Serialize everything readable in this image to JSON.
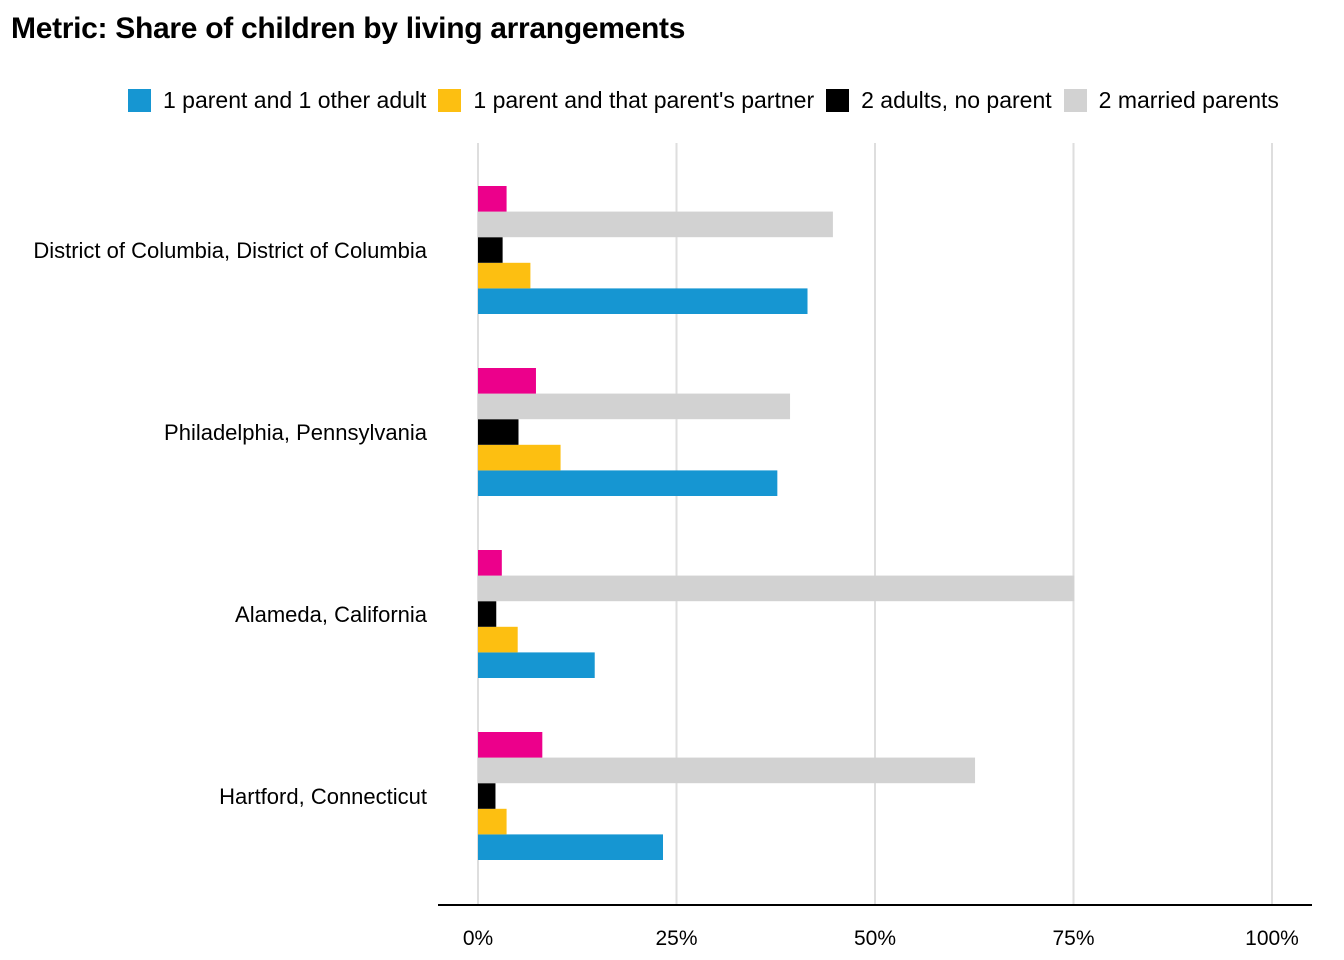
{
  "chart_data": {
    "type": "bar",
    "orientation": "horizontal",
    "title": "Metric: Share of children by living arrangements",
    "categories": [
      "District of Columbia, District of Columbia",
      "Philadelphia, Pennsylvania",
      "Alameda, California",
      "Hartford, Connecticut"
    ],
    "series": [
      {
        "name": "1 parent and 1 other adult",
        "color": "#1696d2",
        "values": [
          41.5,
          37.7,
          14.7,
          23.3
        ]
      },
      {
        "name": "1 parent and that parent's partner",
        "color": "#fdbf11",
        "values": [
          6.6,
          10.4,
          5.0,
          3.6
        ]
      },
      {
        "name": "2 adults, no parent",
        "color": "#000000",
        "values": [
          3.1,
          5.1,
          2.3,
          2.2
        ]
      },
      {
        "name": "2 married parents",
        "color": "#d2d2d2",
        "values": [
          44.7,
          39.3,
          75.1,
          62.6
        ]
      },
      {
        "name": "",
        "color": "#ec008b",
        "values": [
          3.6,
          7.3,
          3.0,
          8.1
        ]
      }
    ],
    "xlim": [
      0,
      100
    ],
    "xticks": [
      "0%",
      "25%",
      "50%",
      "75%",
      "100%"
    ],
    "grid": true,
    "legend_position": "top"
  }
}
